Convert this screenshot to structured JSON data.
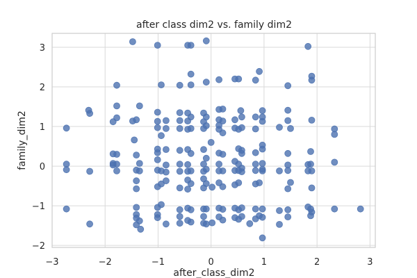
{
  "chart_data": {
    "type": "scatter",
    "title": "after class dim2 vs. family dim2",
    "xlabel": "after_class_dim2",
    "ylabel": "family_dim2",
    "xlim": [
      -3.0,
      3.1
    ],
    "ylim": [
      -2.05,
      3.35
    ],
    "xticks": [
      -3,
      -2,
      -1,
      0,
      1,
      2,
      3
    ],
    "yticks": [
      -2,
      -1,
      0,
      1,
      2,
      3
    ],
    "grid": true,
    "series": [
      {
        "color": "#4c72b0",
        "points": [
          [
            -2.73,
            0.96
          ],
          [
            -2.73,
            0.05
          ],
          [
            -2.73,
            -0.09
          ],
          [
            -2.73,
            -1.08
          ],
          [
            -2.31,
            1.41
          ],
          [
            -2.29,
            1.33
          ],
          [
            -2.29,
            -0.13
          ],
          [
            -2.29,
            -1.46
          ],
          [
            -1.85,
            1.12
          ],
          [
            -1.85,
            0.31
          ],
          [
            -1.85,
            0.07
          ],
          [
            -1.85,
            0.03
          ],
          [
            -1.78,
            2.04
          ],
          [
            -1.78,
            1.52
          ],
          [
            -1.78,
            1.22
          ],
          [
            -1.78,
            0.3
          ],
          [
            -1.78,
            0.05
          ],
          [
            -1.78,
            -0.12
          ],
          [
            -1.48,
            3.14
          ],
          [
            -1.48,
            1.14
          ],
          [
            -1.45,
            0.66
          ],
          [
            -1.41,
            1.17
          ],
          [
            -1.41,
            0.28
          ],
          [
            -1.41,
            -0.1
          ],
          [
            -1.41,
            -0.37
          ],
          [
            -1.41,
            -0.57
          ],
          [
            -1.41,
            -1.04
          ],
          [
            -1.41,
            -1.22
          ],
          [
            -1.41,
            -1.31
          ],
          [
            -1.41,
            -1.48
          ],
          [
            -1.35,
            1.52
          ],
          [
            -1.35,
            0.07
          ],
          [
            -1.35,
            -0.12
          ],
          [
            -1.35,
            -1.38
          ],
          [
            -1.33,
            -1.59
          ],
          [
            -1.01,
            3.05
          ],
          [
            -1.01,
            1.36
          ],
          [
            -1.01,
            1.13
          ],
          [
            -1.01,
            0.97
          ],
          [
            -1.01,
            0.43
          ],
          [
            -1.01,
            0.34
          ],
          [
            -1.01,
            0.16
          ],
          [
            -1.01,
            -0.1
          ],
          [
            -1.01,
            -0.52
          ],
          [
            -1.01,
            -1.04
          ],
          [
            -1.01,
            -1.22
          ],
          [
            -1.01,
            -1.3
          ],
          [
            -0.94,
            2.05
          ],
          [
            -0.94,
            0.77
          ],
          [
            -0.94,
            -0.12
          ],
          [
            -0.94,
            -0.45
          ],
          [
            -0.94,
            -0.97
          ],
          [
            -0.85,
            1.15
          ],
          [
            -0.85,
            0.95
          ],
          [
            -0.85,
            0.42
          ],
          [
            -0.85,
            0.03
          ],
          [
            -0.85,
            -0.15
          ],
          [
            -0.85,
            -0.37
          ],
          [
            -0.85,
            -1.46
          ],
          [
            -0.59,
            2.04
          ],
          [
            -0.59,
            1.35
          ],
          [
            -0.59,
            1.15
          ],
          [
            -0.59,
            0.95
          ],
          [
            -0.59,
            0.4
          ],
          [
            -0.59,
            0.05
          ],
          [
            -0.59,
            -0.13
          ],
          [
            -0.59,
            -0.55
          ],
          [
            -0.59,
            -1.1
          ],
          [
            -0.59,
            -1.27
          ],
          [
            -0.59,
            -1.44
          ],
          [
            -0.44,
            3.05
          ],
          [
            -0.44,
            1.34
          ],
          [
            -0.44,
            1.14
          ],
          [
            -0.44,
            0.93
          ],
          [
            -0.44,
            0.42
          ],
          [
            -0.44,
            0.04
          ],
          [
            -0.44,
            -0.13
          ],
          [
            -0.44,
            -0.35
          ],
          [
            -0.44,
            -0.58
          ],
          [
            -0.44,
            -1.06
          ],
          [
            -0.44,
            -1.37
          ],
          [
            -0.38,
            3.05
          ],
          [
            -0.38,
            2.32
          ],
          [
            -0.38,
            2.05
          ],
          [
            -0.38,
            1.24
          ],
          [
            -0.38,
            0.95
          ],
          [
            -0.38,
            0.32
          ],
          [
            -0.38,
            -0.12
          ],
          [
            -0.38,
            -0.44
          ],
          [
            -0.38,
            -1.1
          ],
          [
            -0.38,
            -1.41
          ],
          [
            -0.14,
            1.34
          ],
          [
            -0.14,
            1.12
          ],
          [
            -0.14,
            0.95
          ],
          [
            -0.14,
            0.42
          ],
          [
            -0.14,
            0.05
          ],
          [
            -0.14,
            -0.13
          ],
          [
            -0.14,
            -0.32
          ],
          [
            -0.14,
            -0.55
          ],
          [
            -0.14,
            -1.08
          ],
          [
            -0.14,
            -1.27
          ],
          [
            -0.14,
            -1.44
          ],
          [
            -0.09,
            3.16
          ],
          [
            -0.09,
            2.12
          ],
          [
            -0.09,
            1.24
          ],
          [
            -0.09,
            1.02
          ],
          [
            -0.09,
            0.2
          ],
          [
            -0.09,
            -0.08
          ],
          [
            -0.09,
            -0.44
          ],
          [
            -0.09,
            -1.08
          ],
          [
            -0.09,
            -1.46
          ],
          [
            0.0,
            0.6
          ],
          [
            0.02,
            -0.53
          ],
          [
            0.02,
            -1.43
          ],
          [
            0.15,
            2.18
          ],
          [
            0.15,
            1.43
          ],
          [
            0.15,
            1.17
          ],
          [
            0.15,
            1.03
          ],
          [
            0.15,
            0.93
          ],
          [
            0.15,
            0.33
          ],
          [
            0.15,
            0.05
          ],
          [
            0.15,
            -0.12
          ],
          [
            0.15,
            -0.42
          ],
          [
            0.15,
            -1.06
          ],
          [
            0.15,
            -1.28
          ],
          [
            0.22,
            1.44
          ],
          [
            0.22,
            1.14
          ],
          [
            0.22,
            0.84
          ],
          [
            0.22,
            0.3
          ],
          [
            0.22,
            -0.12
          ],
          [
            0.22,
            -0.52
          ],
          [
            0.22,
            -1.09
          ],
          [
            0.22,
            -1.36
          ],
          [
            0.45,
            2.2
          ],
          [
            0.45,
            1.17
          ],
          [
            0.45,
            0.96
          ],
          [
            0.45,
            0.12
          ],
          [
            0.45,
            -0.11
          ],
          [
            0.45,
            -0.47
          ],
          [
            0.45,
            -1.06
          ],
          [
            0.45,
            -1.3
          ],
          [
            0.52,
            2.2
          ],
          [
            0.52,
            0.93
          ],
          [
            0.52,
            0.44
          ],
          [
            0.52,
            0.05
          ],
          [
            0.52,
            -0.11
          ],
          [
            0.52,
            -0.42
          ],
          [
            0.52,
            -1.1
          ],
          [
            0.52,
            -1.34
          ],
          [
            0.56,
            1.4
          ],
          [
            0.58,
            1.24
          ],
          [
            0.58,
            0.97
          ],
          [
            0.58,
            0.4
          ],
          [
            0.58,
            0.32
          ],
          [
            0.58,
            -0.05
          ],
          [
            0.58,
            -0.14
          ],
          [
            0.58,
            -1.05
          ],
          [
            0.58,
            -1.27
          ],
          [
            0.73,
            -1.45
          ],
          [
            0.84,
            2.17
          ],
          [
            0.84,
            1.24
          ],
          [
            0.84,
            0.94
          ],
          [
            0.84,
            0.34
          ],
          [
            0.84,
            0.05
          ],
          [
            0.84,
            -0.11
          ],
          [
            0.84,
            -0.45
          ],
          [
            0.84,
            -1.08
          ],
          [
            0.84,
            -1.33
          ],
          [
            0.91,
            2.39
          ],
          [
            0.91,
            -0.42
          ],
          [
            0.91,
            -1.25
          ],
          [
            0.97,
            1.4
          ],
          [
            0.97,
            1.24
          ],
          [
            0.97,
            1.13
          ],
          [
            0.97,
            0.53
          ],
          [
            0.97,
            0.43
          ],
          [
            0.97,
            0.07
          ],
          [
            0.97,
            -0.08
          ],
          [
            0.97,
            -0.12
          ],
          [
            0.97,
            -1.08
          ],
          [
            0.97,
            -1.29
          ],
          [
            0.97,
            -1.81
          ],
          [
            1.29,
            0.98
          ],
          [
            1.29,
            -0.12
          ],
          [
            1.29,
            -1.12
          ],
          [
            1.29,
            -1.47
          ],
          [
            1.45,
            2.03
          ],
          [
            1.45,
            1.41
          ],
          [
            1.45,
            1.15
          ],
          [
            1.45,
            0.32
          ],
          [
            1.45,
            0.03
          ],
          [
            1.45,
            -0.11
          ],
          [
            1.45,
            -0.57
          ],
          [
            1.45,
            -1.1
          ],
          [
            1.45,
            -1.28
          ],
          [
            1.5,
            0.95
          ],
          [
            1.5,
            -0.41
          ],
          [
            1.83,
            3.02
          ],
          [
            1.83,
            0.04
          ],
          [
            1.83,
            -0.12
          ],
          [
            1.83,
            -1.03
          ],
          [
            1.88,
            0.37
          ],
          [
            1.88,
            0.05
          ],
          [
            1.88,
            -1.08
          ],
          [
            1.88,
            -1.25
          ],
          [
            1.9,
            2.27
          ],
          [
            1.9,
            2.17
          ],
          [
            1.9,
            1.16
          ],
          [
            1.9,
            -0.12
          ],
          [
            1.9,
            -0.55
          ],
          [
            1.9,
            -1.16
          ],
          [
            2.33,
            0.94
          ],
          [
            2.33,
            0.8
          ],
          [
            2.33,
            0.1
          ],
          [
            2.33,
            -1.08
          ],
          [
            2.82,
            -1.08
          ]
        ]
      }
    ]
  }
}
